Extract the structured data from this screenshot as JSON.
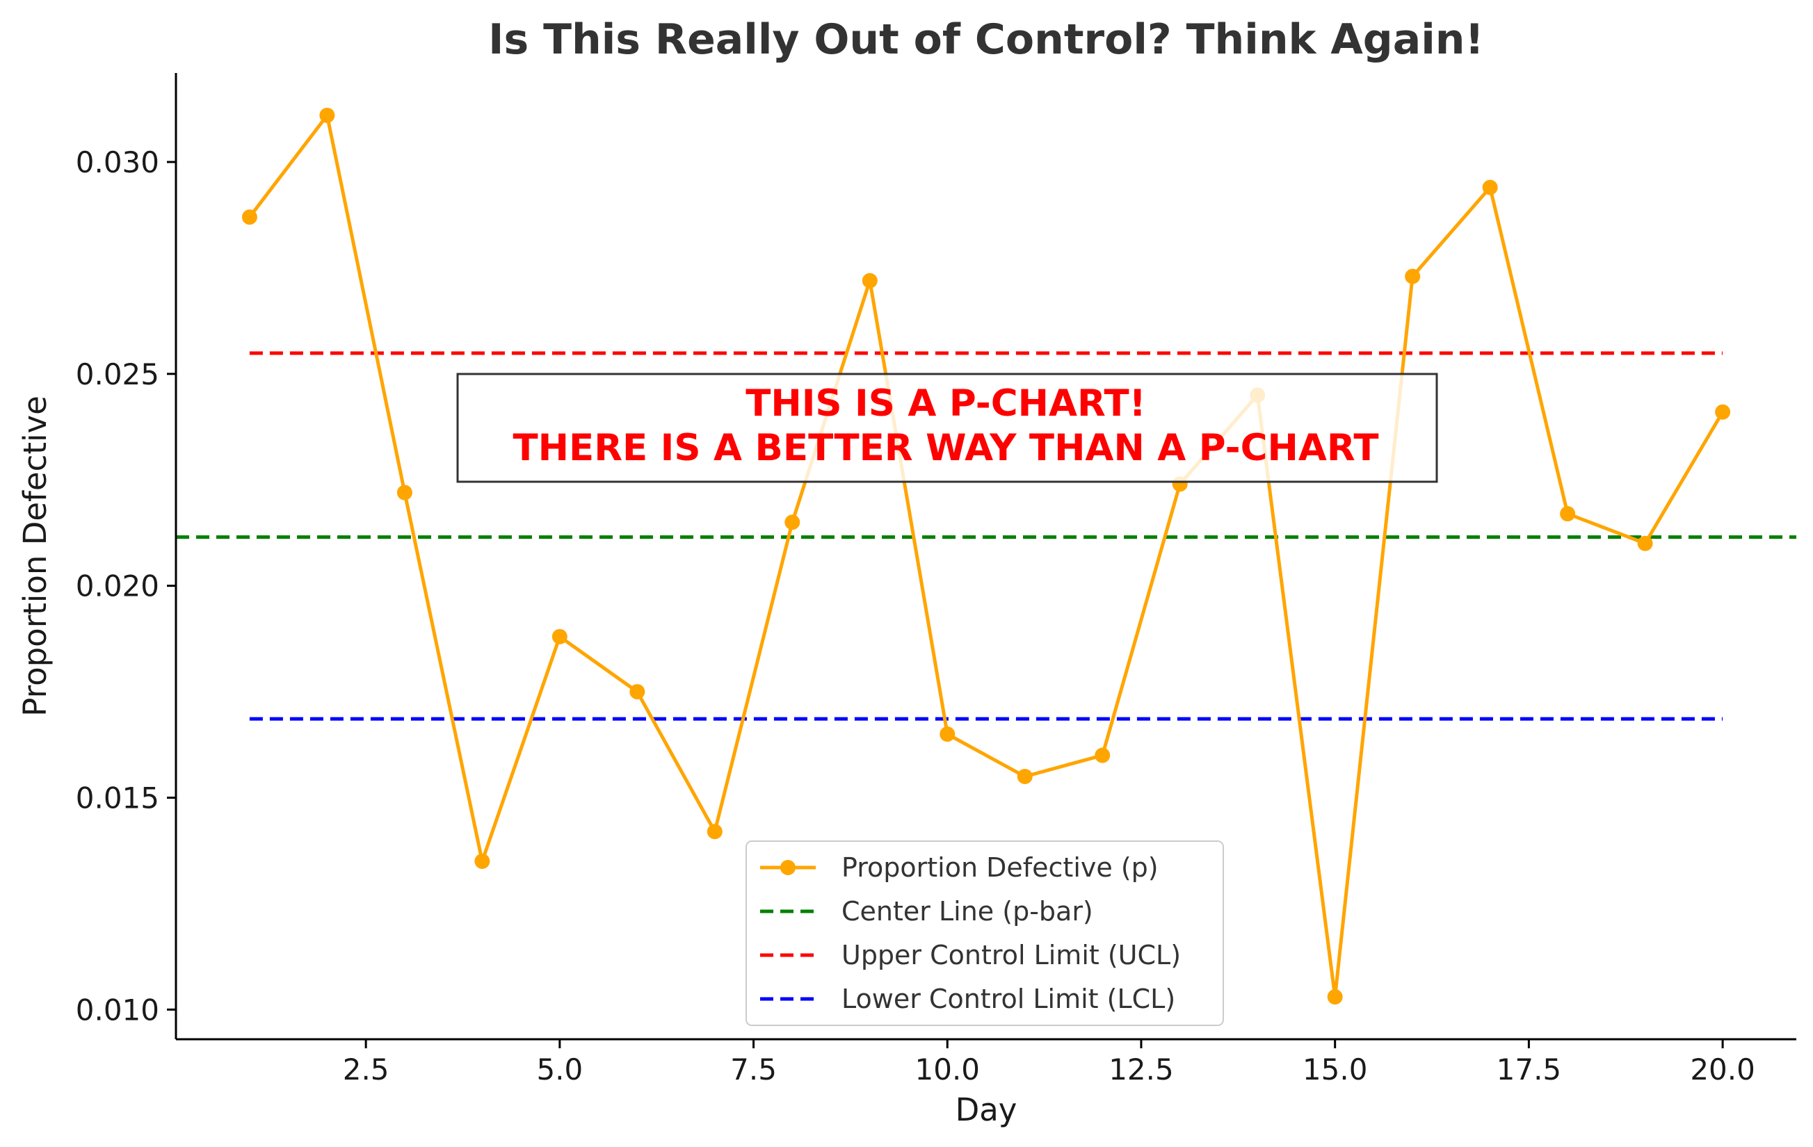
{
  "chart_data": {
    "type": "line",
    "title": "Is This Really Out of Control? Think Again!",
    "xlabel": "Day",
    "ylabel": "Proportion Defective",
    "xlim": [
      0.05,
      20.95
    ],
    "ylim": [
      0.0093,
      0.0321
    ],
    "x_ticks": [
      2.5,
      5.0,
      7.5,
      10.0,
      12.5,
      15.0,
      17.5,
      20.0
    ],
    "x_tick_labels": [
      "2.5",
      "5.0",
      "7.5",
      "10.0",
      "12.5",
      "15.0",
      "17.5",
      "20.0"
    ],
    "y_ticks": [
      0.01,
      0.015,
      0.02,
      0.025,
      0.03
    ],
    "y_tick_labels": [
      "0.010",
      "0.015",
      "0.020",
      "0.025",
      "0.030"
    ],
    "grid": false,
    "legend_position": "lower center",
    "series": [
      {
        "name": "Proportion Defective (p)",
        "color": "#ffa500",
        "style": "line-marker",
        "x": [
          1,
          2,
          3,
          4,
          5,
          6,
          7,
          8,
          9,
          10,
          11,
          12,
          13,
          14,
          15,
          16,
          17,
          18,
          19,
          20
        ],
        "values": [
          0.0287,
          0.0311,
          0.0222,
          0.0135,
          0.0188,
          0.0175,
          0.0142,
          0.0215,
          0.0272,
          0.0165,
          0.0155,
          0.016,
          0.0224,
          0.0245,
          0.0103,
          0.0273,
          0.0294,
          0.0217,
          0.021,
          0.0241
        ]
      },
      {
        "name": "Center Line (p-bar)",
        "color": "#008000",
        "style": "dashed",
        "value": 0.02115,
        "span": "full"
      },
      {
        "name": "Upper Control Limit (UCL)",
        "color": "#ff0000",
        "style": "dashed",
        "value": 0.02549,
        "span": [
          1,
          20
        ]
      },
      {
        "name": "Lower Control Limit (LCL)",
        "color": "#0000ff",
        "style": "dashed",
        "value": 0.01686,
        "span": [
          1,
          20
        ]
      }
    ],
    "annotation": {
      "lines": [
        "THIS IS A P-CHART!",
        "THERE IS A BETTER WAY THAN A P-CHART"
      ],
      "color": "#ff0000"
    }
  }
}
